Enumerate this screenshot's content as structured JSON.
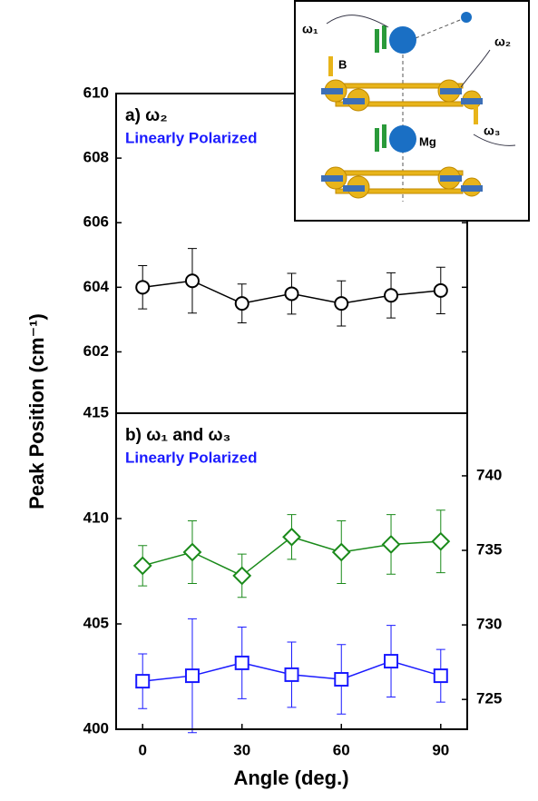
{
  "chart_data": [
    {
      "type": "line",
      "title": "a) ω₂",
      "subtitle": "Linearly Polarized",
      "ylabel": "Peak Position (cm⁻¹)",
      "xlim": [
        -8,
        98
      ],
      "ylim": [
        600.1,
        610
      ],
      "yticks": [
        602,
        604,
        606,
        608,
        610
      ],
      "x": [
        0,
        15,
        30,
        45,
        60,
        75,
        90
      ],
      "series": [
        {
          "color": "#000000",
          "marker": "circle",
          "values": [
            604.0,
            604.2,
            603.5,
            603.8,
            603.5,
            603.75,
            603.9
          ],
          "errors": [
            0.67,
            1.0,
            0.6,
            0.63,
            0.7,
            0.7,
            0.72
          ]
        }
      ]
    },
    {
      "type": "line",
      "title": "b) ω₁ and ω₃",
      "subtitle": "Linearly Polarized",
      "xlabel": "Angle (deg.)",
      "xlim": [
        -8,
        98
      ],
      "xticks": [
        0,
        30,
        60,
        90
      ],
      "ylim": [
        400,
        415
      ],
      "yticks": [
        400,
        405,
        410,
        415
      ],
      "y2lim": [
        723,
        744.2
      ],
      "y2ticks": [
        725,
        730,
        735,
        740
      ],
      "x": [
        0,
        15,
        30,
        45,
        60,
        75,
        90
      ],
      "series": [
        {
          "color": "#1a1aff",
          "marker": "square",
          "values": [
            402.28,
            402.54,
            403.15,
            402.59,
            402.37,
            403.23,
            402.54
          ],
          "errors": [
            1.3,
            2.7,
            1.7,
            1.55,
            1.65,
            1.7,
            1.25
          ]
        },
        {
          "color": "#1a8a1a",
          "marker": "diamond",
          "axis": "y2",
          "values": [
            733.97,
            734.88,
            733.3,
            735.9,
            734.88,
            735.4,
            735.6
          ],
          "errors": [
            1.35,
            2.1,
            1.45,
            1.5,
            2.1,
            2.0,
            2.1
          ]
        }
      ]
    }
  ],
  "inset": {
    "labels": [
      "ω₁",
      "ω₂",
      "ω₃",
      "B",
      "Mg"
    ]
  }
}
